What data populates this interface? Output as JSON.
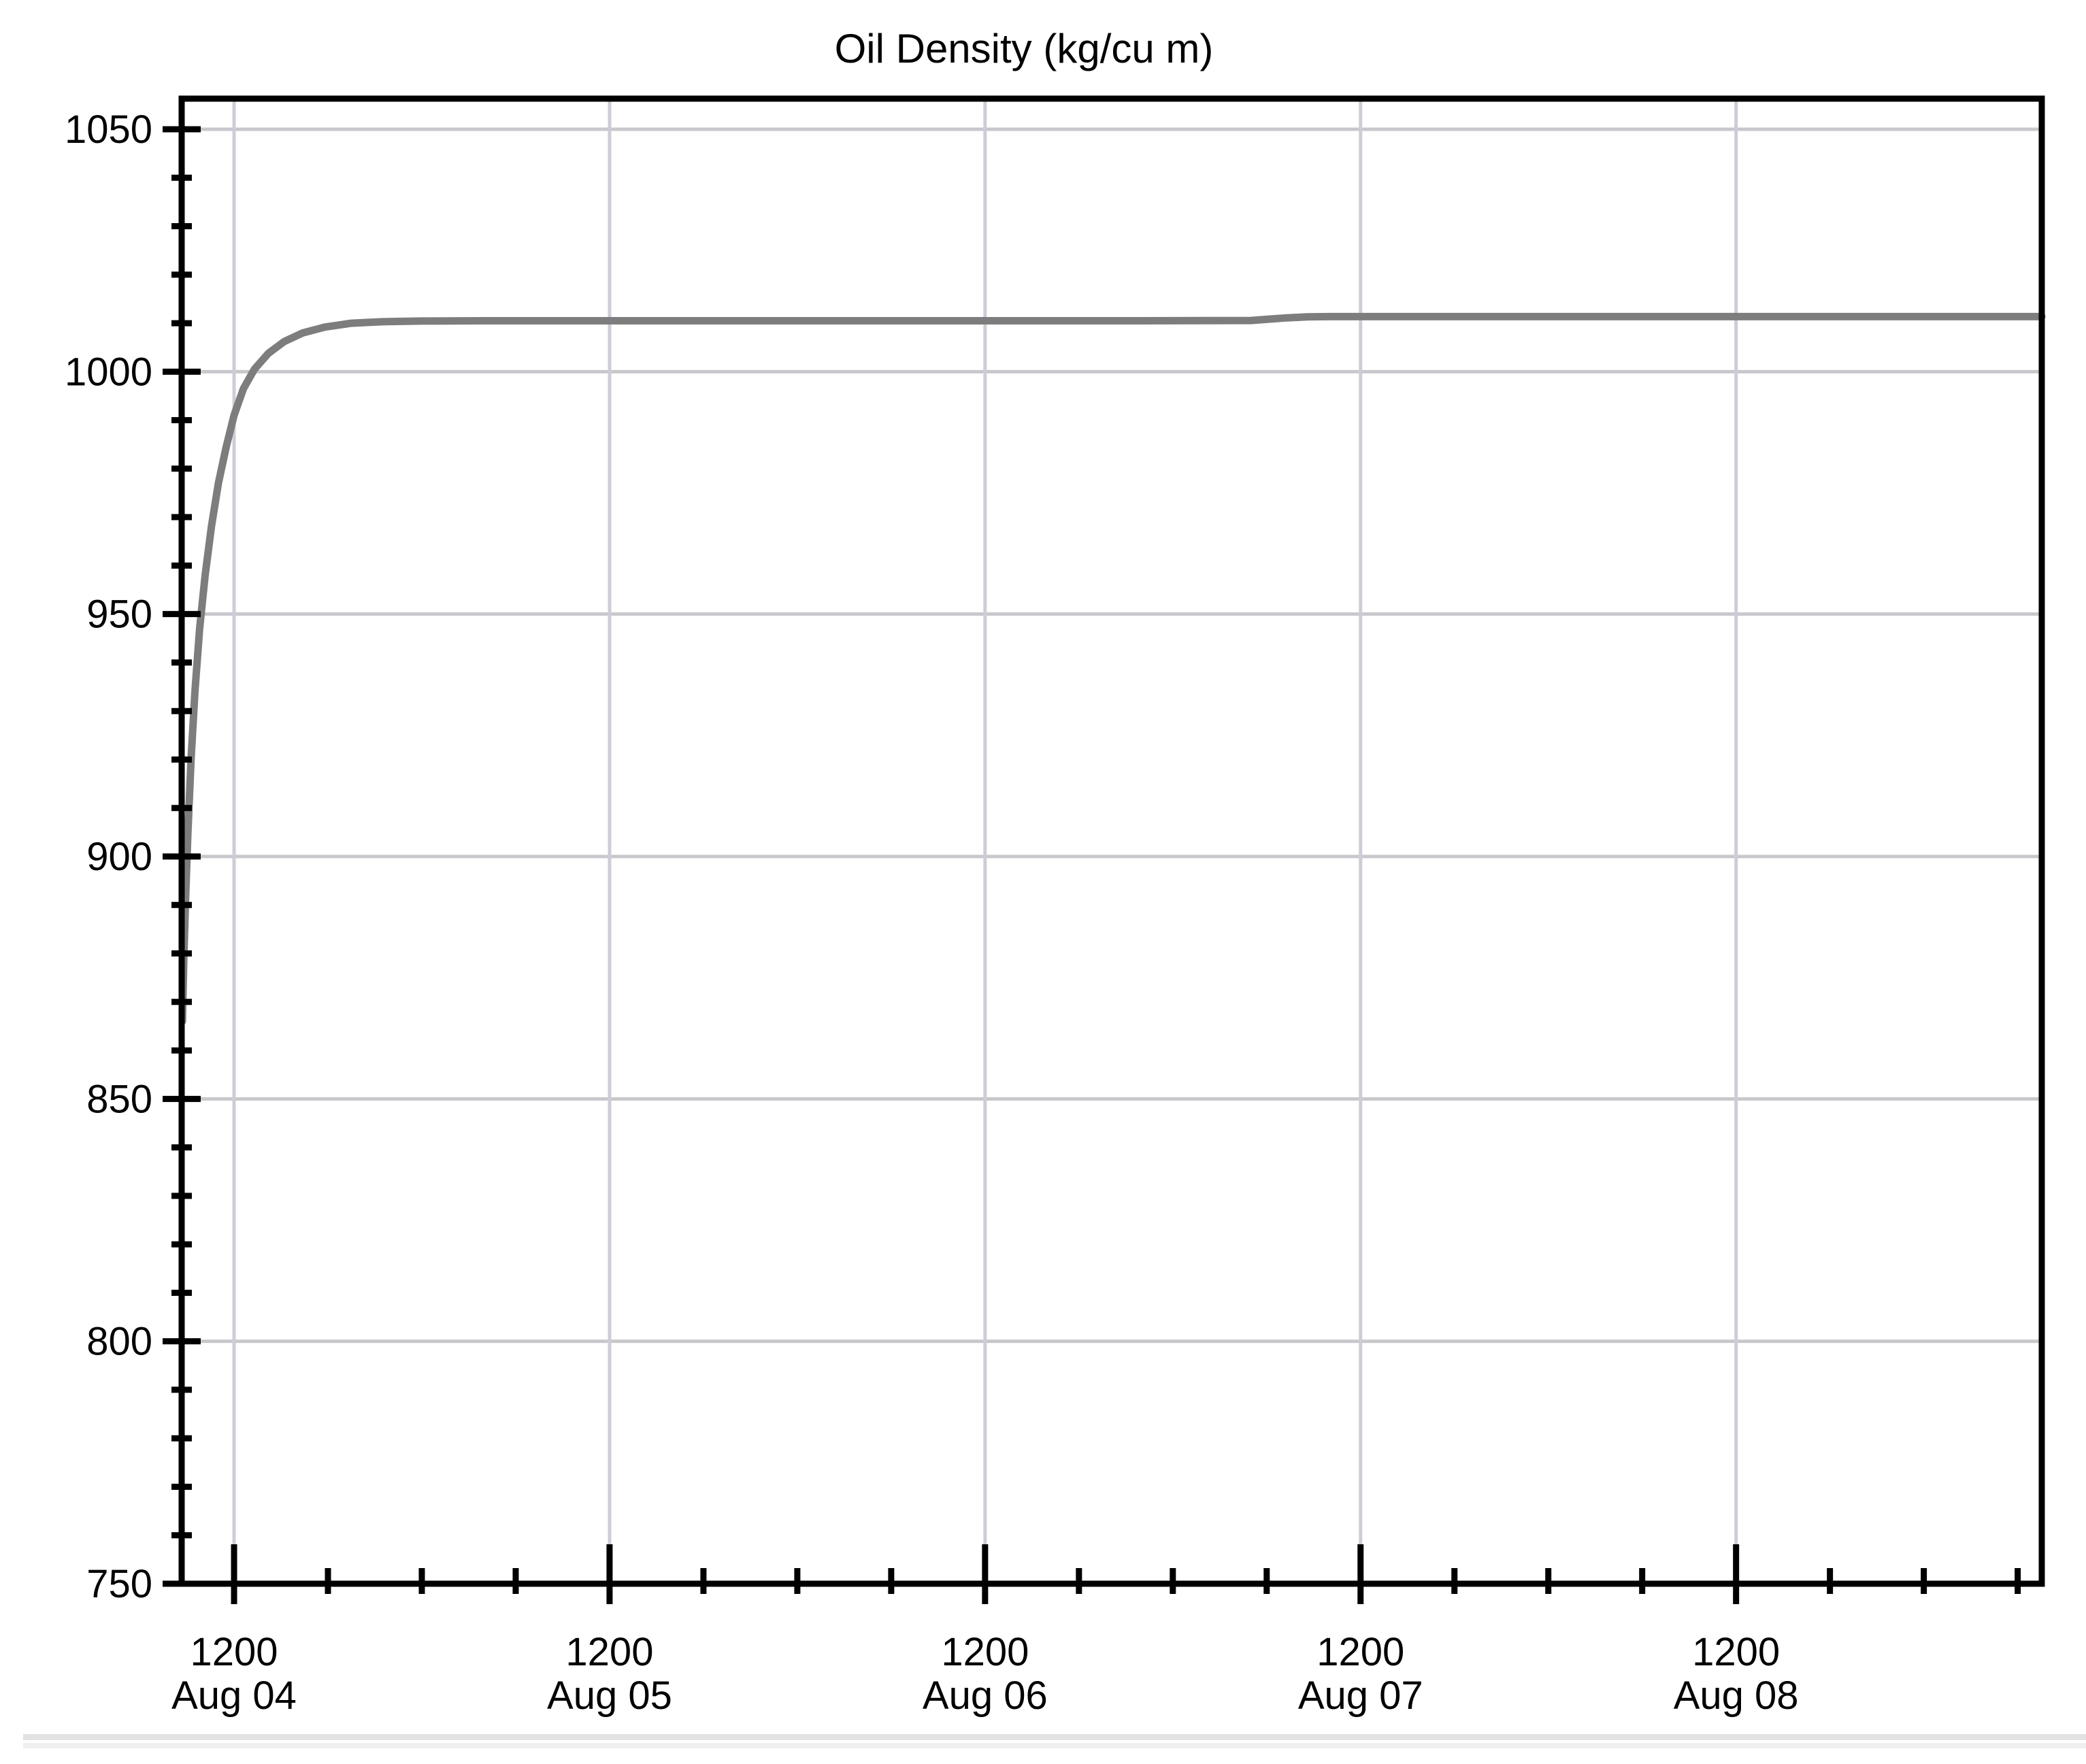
{
  "page": {
    "background": "#ffffff",
    "divider_top_color": "#e2e2e2",
    "divider_bottom_color": "#efefef"
  },
  "chart_data": {
    "type": "line",
    "title": "Oil Density (kg/cu m)",
    "x_axis": {
      "unit": "hours from Aug 04 00:00",
      "range_hours": [
        8.65,
        127.54
      ],
      "major_ticks": [
        {
          "hour": 12,
          "time": "1200",
          "date": "Aug 04"
        },
        {
          "hour": 36,
          "time": "1200",
          "date": "Aug 05"
        },
        {
          "hour": 60,
          "time": "1200",
          "date": "Aug 06"
        },
        {
          "hour": 84,
          "time": "1200",
          "date": "Aug 07"
        },
        {
          "hour": 108,
          "time": "1200",
          "date": "Aug 08"
        }
      ],
      "minor_tick_step_hours": 6
    },
    "y_axis": {
      "range": [
        750,
        1050
      ],
      "major_step": 50,
      "minor_step": 10,
      "tick_labels": [
        "750",
        "800",
        "850",
        "900",
        "950",
        "1000",
        "1050"
      ]
    },
    "grid": {
      "show_major": true,
      "show_minor": false,
      "h_color": "#c8c8cc",
      "v_color": "#cdcdd8"
    },
    "frame_color": "#000000",
    "series": [
      {
        "name": "Oil Density",
        "color": "#7d7d7d",
        "points": [
          [
            8.7,
            866
          ],
          [
            8.78,
            878
          ],
          [
            8.9,
            891
          ],
          [
            9.05,
            905
          ],
          [
            9.25,
            920
          ],
          [
            9.5,
            934
          ],
          [
            9.8,
            947
          ],
          [
            10.15,
            958
          ],
          [
            10.55,
            968
          ],
          [
            11.0,
            977
          ],
          [
            11.5,
            984.5
          ],
          [
            12.0,
            991
          ],
          [
            12.6,
            996.5
          ],
          [
            13.3,
            1000.5
          ],
          [
            14.2,
            1003.8
          ],
          [
            15.2,
            1006.2
          ],
          [
            16.4,
            1008.0
          ],
          [
            17.8,
            1009.2
          ],
          [
            19.5,
            1010.0
          ],
          [
            21.5,
            1010.3
          ],
          [
            24.0,
            1010.45
          ],
          [
            28.0,
            1010.5
          ],
          [
            36.0,
            1010.5
          ],
          [
            48.0,
            1010.5
          ],
          [
            60.0,
            1010.5
          ],
          [
            70.0,
            1010.5
          ],
          [
            77.0,
            1010.55
          ],
          [
            78.0,
            1010.8
          ],
          [
            79.3,
            1011.1
          ],
          [
            80.6,
            1011.3
          ],
          [
            82.0,
            1011.35
          ],
          [
            90.0,
            1011.35
          ],
          [
            100.0,
            1011.35
          ],
          [
            108.0,
            1011.35
          ],
          [
            118.0,
            1011.35
          ],
          [
            127.54,
            1011.35
          ]
        ]
      }
    ]
  }
}
